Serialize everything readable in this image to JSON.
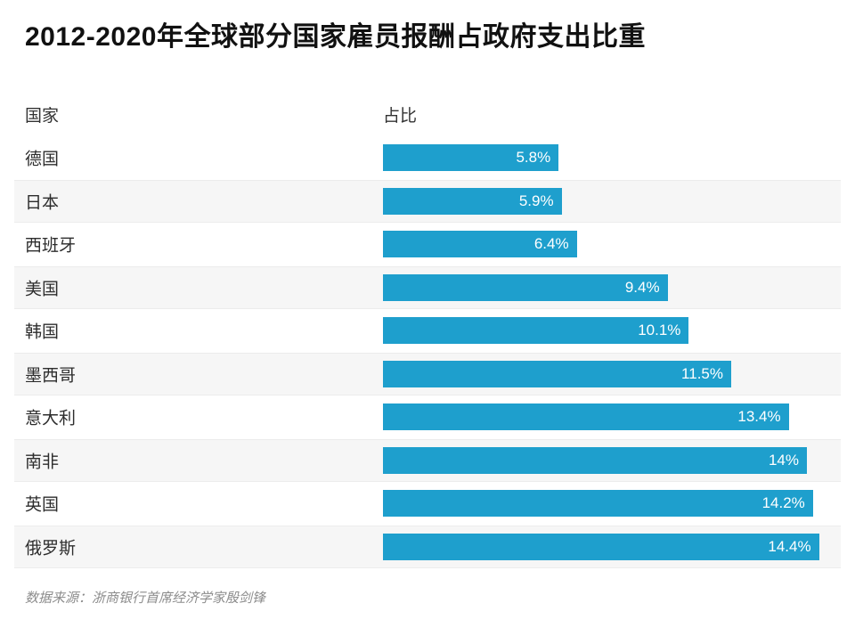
{
  "chart_data": {
    "type": "bar",
    "orientation": "horizontal",
    "title": "2012-2020年全球部分国家雇员报酬占政府支出比重",
    "column_headers": {
      "country": "国家",
      "share": "占比"
    },
    "categories": [
      "德国",
      "日本",
      "西班牙",
      "美国",
      "韩国",
      "墨西哥",
      "意大利",
      "南非",
      "英国",
      "俄罗斯"
    ],
    "values": [
      5.8,
      5.9,
      6.4,
      9.4,
      10.1,
      11.5,
      13.4,
      14,
      14.2,
      14.4
    ],
    "value_labels": [
      "5.8%",
      "5.9%",
      "6.4%",
      "9.4%",
      "10.1%",
      "11.5%",
      "13.4%",
      "14%",
      "14.2%",
      "14.4%"
    ],
    "xlim": [
      0,
      14.4
    ],
    "grid": false,
    "legend": "none",
    "bar_color": "#1e9fcd",
    "stripe_color": "#f6f6f6",
    "value_label_color": "#ffffff",
    "source": "数据来源：浙商银行首席经济学家殷剑锋"
  }
}
